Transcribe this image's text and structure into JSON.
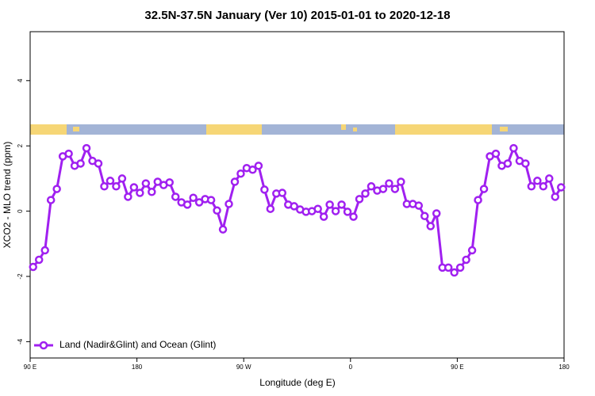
{
  "chart_data": {
    "type": "line",
    "title": "32.5N-37.5N January (Ver 10)   2015-01-01 to 2020-12-18",
    "x_label": "Longitude (deg E)",
    "y_label": "XCO2 - MLO trend (ppm)",
    "xlim": [
      90,
      540
    ],
    "ylim": [
      -4.5,
      5.5
    ],
    "xticks": [
      {
        "value": 90,
        "label": "90 E"
      },
      180,
      {
        "value": 270,
        "label": "90 W"
      },
      {
        "value": 360,
        "label": "0"
      },
      {
        "value": 450,
        "label": "90 E"
      },
      {
        "value": 540,
        "label": "180"
      }
    ],
    "yticks": [
      -4,
      -2,
      0,
      2,
      4
    ],
    "legend": "bottom-left",
    "x": [
      92.5,
      97.5,
      102.5,
      107.5,
      112.5,
      117.5,
      122.5,
      127.5,
      132.5,
      137.5,
      142.5,
      147.5,
      152.5,
      157.5,
      162.5,
      167.5,
      172.5,
      177.5,
      182.5,
      187.5,
      192.5,
      197.5,
      202.5,
      207.5,
      212.5,
      217.5,
      222.5,
      227.5,
      232.5,
      237.5,
      242.5,
      247.5,
      252.5,
      257.5,
      262.5,
      267.5,
      272.5,
      277.5,
      282.5,
      287.5,
      292.5,
      297.5,
      302.5,
      307.5,
      312.5,
      317.5,
      322.5,
      327.5,
      332.5,
      337.5,
      342.5,
      347.5,
      352.5,
      357.5,
      362.5,
      367.5,
      372.5,
      377.5,
      382.5,
      387.5,
      392.5,
      397.5,
      402.5,
      407.5,
      412.5,
      417.5,
      422.5,
      427.5,
      432.5,
      437.5,
      442.5,
      447.5,
      452.5,
      457.5,
      462.5,
      467.5,
      472.5,
      477.5,
      482.5,
      487.5,
      492.5,
      497.5,
      502.5,
      507.5,
      512.5,
      517.5,
      522.5,
      527.5,
      532.5,
      537.5
    ],
    "series": [
      {
        "name": "Land (Nadir&Glint) and Ocean (Glint)",
        "color": "#a020f0",
        "values": [
          -1.71,
          -1.49,
          -1.2,
          0.34,
          0.68,
          1.68,
          1.76,
          1.39,
          1.46,
          1.93,
          1.54,
          1.46,
          0.76,
          0.93,
          0.76,
          1.0,
          0.44,
          0.73,
          0.56,
          0.85,
          0.59,
          0.9,
          0.8,
          0.88,
          0.44,
          0.27,
          0.2,
          0.41,
          0.27,
          0.37,
          0.34,
          0.02,
          -0.56,
          0.22,
          0.9,
          1.15,
          1.32,
          1.27,
          1.39,
          0.66,
          0.07,
          0.54,
          0.56,
          0.2,
          0.15,
          0.05,
          -0.02,
          0,
          0.07,
          -0.17,
          0.2,
          0,
          0.2,
          -0.02,
          -0.17,
          0.37,
          0.54,
          0.76,
          0.63,
          0.68,
          0.85,
          0.68,
          0.9,
          0.22,
          0.22,
          0.17,
          -0.15,
          -0.46,
          -0.07,
          -1.73,
          -1.73,
          -1.88,
          -1.73,
          -1.49,
          -1.2,
          0.34,
          0.68,
          1.68,
          1.76,
          1.39,
          1.46,
          1.93,
          1.54,
          1.46,
          0.76,
          0.93,
          0.76,
          1.0,
          0.44,
          0.73
        ]
      }
    ]
  }
}
